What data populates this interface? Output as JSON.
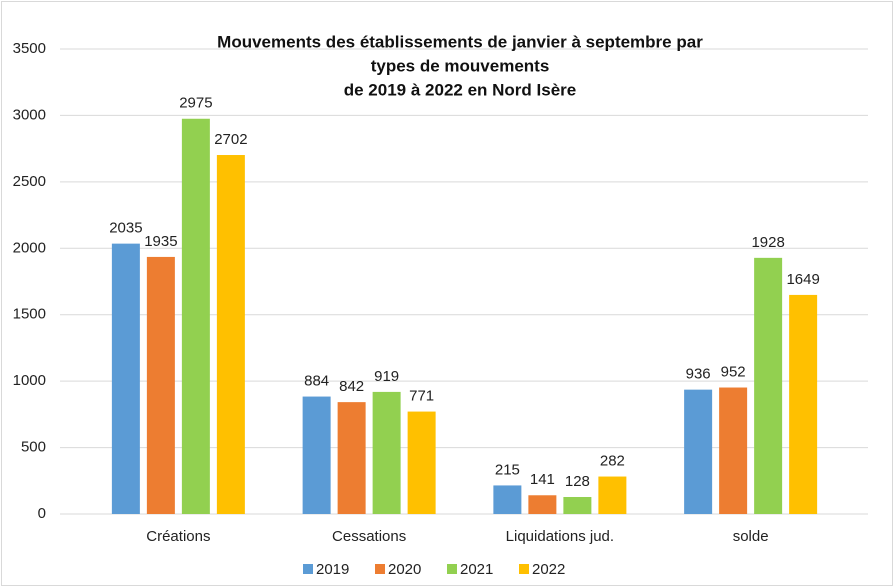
{
  "chart_data": {
    "type": "bar",
    "title": [
      "Mouvements des établissements de janvier à septembre par",
      "types de mouvements",
      "de 2019 à 2022 en Nord Isère"
    ],
    "categories": [
      "Créations",
      "Cessations",
      "Liquidations jud.",
      "solde"
    ],
    "series": [
      {
        "name": "2019",
        "color": "#5b9bd5",
        "values": [
          2035,
          884,
          215,
          936
        ]
      },
      {
        "name": "2020",
        "color": "#ed7d31",
        "values": [
          1935,
          842,
          141,
          952
        ]
      },
      {
        "name": "2021",
        "color": "#92d050",
        "values": [
          2975,
          919,
          128,
          1928
        ]
      },
      {
        "name": "2022",
        "color": "#ffc000",
        "values": [
          2702,
          771,
          282,
          1649
        ]
      }
    ],
    "ylim": [
      0,
      3500
    ],
    "yticks": [
      0,
      500,
      1000,
      1500,
      2000,
      2500,
      3000,
      3500
    ],
    "grid": true,
    "legend": "bottom"
  }
}
